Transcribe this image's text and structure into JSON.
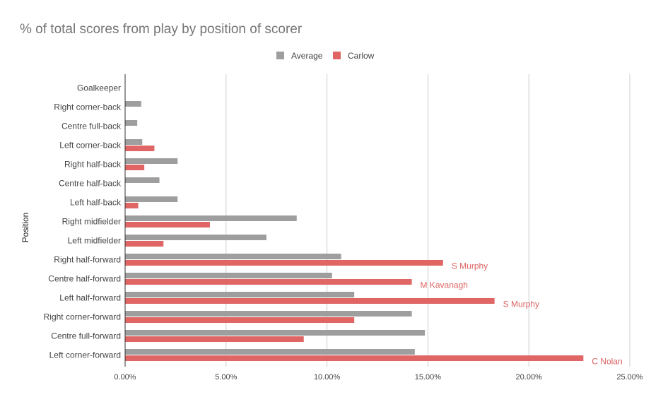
{
  "chart_data": {
    "type": "bar",
    "orientation": "horizontal",
    "title": "% of total scores from play by position of scorer",
    "ylabel": "Position",
    "xlabel": "",
    "categories": [
      "Goalkeeper",
      "Right corner-back",
      "Centre full-back",
      "Left corner-back",
      "Right half-back",
      "Centre half-back",
      "Left half-back",
      "Right midfielder",
      "Left midfielder",
      "Right half-forward",
      "Centre half-forward",
      "Left half-forward",
      "Right corner-forward",
      "Centre full-forward",
      "Left corner-forward"
    ],
    "series": [
      {
        "name": "Average",
        "color": "#9e9e9e",
        "values": [
          0.0,
          0.8,
          0.6,
          0.85,
          2.6,
          1.7,
          2.6,
          8.5,
          7.0,
          10.7,
          10.25,
          11.35,
          14.2,
          14.85,
          14.35
        ]
      },
      {
        "name": "Carlow",
        "color": "#e06666",
        "values": [
          0.0,
          0.0,
          0.0,
          1.45,
          0.95,
          0.0,
          0.65,
          4.2,
          1.9,
          15.75,
          14.2,
          18.3,
          11.35,
          8.85,
          22.7
        ]
      }
    ],
    "data_labels": [
      {
        "category": "Right half-forward",
        "series": "Carlow",
        "text": "S Murphy"
      },
      {
        "category": "Centre half-forward",
        "series": "Carlow",
        "text": "M Kavanagh"
      },
      {
        "category": "Left half-forward",
        "series": "Carlow",
        "text": "S Murphy"
      },
      {
        "category": "Left corner-forward",
        "series": "Carlow",
        "text": "C Nolan"
      }
    ],
    "xlim": [
      0,
      25
    ],
    "xticks": [
      0,
      5,
      10,
      15,
      20,
      25
    ],
    "xtick_labels": [
      "0.00%",
      "5.00%",
      "10.00%",
      "15.00%",
      "20.00%",
      "25.00%"
    ],
    "grid": true,
    "legend_position": "top-center"
  }
}
